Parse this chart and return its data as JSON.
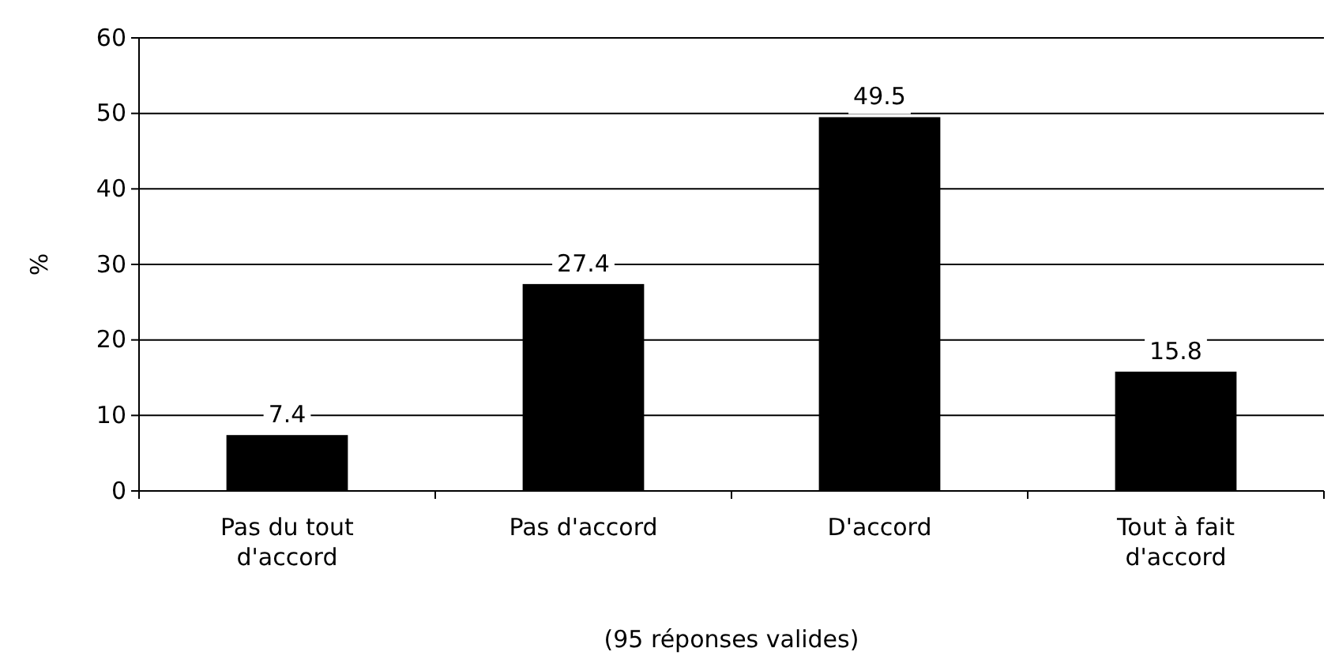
{
  "chart_data": {
    "type": "bar",
    "categories": [
      "Pas du tout d'accord",
      "Pas d'accord",
      "D'accord",
      "Tout à fait d'accord"
    ],
    "values": [
      7.4,
      27.4,
      49.5,
      15.8
    ],
    "color": "#000000",
    "ylim": [
      0,
      60
    ],
    "yticks": [
      0,
      10,
      20,
      30,
      40,
      50,
      60
    ],
    "grid": "y",
    "data_labels": true,
    "xlabel": "(95 réponses valides)",
    "ylabel": "%"
  }
}
